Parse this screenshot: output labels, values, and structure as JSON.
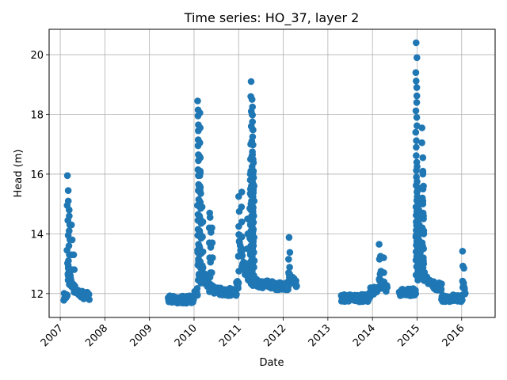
{
  "chart_data": {
    "type": "scatter",
    "title": "Time series: HO_37, layer 2",
    "xlabel": "Date",
    "ylabel": "Head (m)",
    "x_ticks": [
      "2007",
      "2008",
      "2009",
      "2010",
      "2011",
      "2012",
      "2013",
      "2014",
      "2015",
      "2016"
    ],
    "y_ticks": [
      12,
      14,
      16,
      18,
      20
    ],
    "xlim": [
      2006.75,
      2016.75
    ],
    "ylim": [
      11.2,
      20.85
    ],
    "grid": true,
    "legend": "none",
    "marker_color": "#1f77b4",
    "episodes": [
      {
        "start": 2007.08,
        "end": 2007.65,
        "base": 11.9,
        "peaks": [
          [
            2007.16,
            15.95
          ],
          [
            2007.18,
            15.1
          ],
          [
            2007.2,
            14.8
          ],
          [
            2007.25,
            14.3
          ],
          [
            2007.3,
            13.3
          ]
        ]
      },
      {
        "start": 2009.42,
        "end": 2009.99,
        "base": 11.8,
        "peaks": []
      },
      {
        "start": 2010.0,
        "end": 2010.95,
        "base": 12.05,
        "peaks": [
          [
            2010.08,
            18.45
          ],
          [
            2010.09,
            18.15
          ],
          [
            2010.13,
            18.05
          ],
          [
            2010.12,
            16.6
          ],
          [
            2010.13,
            15.95
          ],
          [
            2010.12,
            15.55
          ],
          [
            2010.15,
            15.35
          ],
          [
            2010.14,
            14.95
          ],
          [
            2010.18,
            14.9
          ],
          [
            2010.35,
            14.7
          ],
          [
            2010.36,
            14.55
          ],
          [
            2010.4,
            14.2
          ]
        ]
      },
      {
        "start": 2010.95,
        "end": 2011.75,
        "base": 12.3,
        "peaks": [
          [
            2011.0,
            15.25
          ],
          [
            2011.07,
            15.4
          ],
          [
            2011.28,
            19.1
          ],
          [
            2011.3,
            18.5
          ],
          [
            2011.31,
            18.25
          ],
          [
            2011.31,
            17.98
          ],
          [
            2011.27,
            17.0
          ],
          [
            2011.31,
            16.65
          ],
          [
            2011.33,
            16.38
          ],
          [
            2011.33,
            16.1
          ],
          [
            2011.26,
            15.8
          ],
          [
            2011.26,
            15.35
          ],
          [
            2011.3,
            15.0
          ],
          [
            2011.2,
            14.5
          ]
        ]
      },
      {
        "start": 2011.75,
        "end": 2012.3,
        "base": 12.25,
        "peaks": [
          [
            2012.13,
            13.88
          ],
          [
            2012.12,
            13.15
          ]
        ]
      },
      {
        "start": 2013.3,
        "end": 2013.95,
        "base": 11.85,
        "peaks": []
      },
      {
        "start": 2013.95,
        "end": 2014.33,
        "base": 12.1,
        "peaks": [
          [
            2014.15,
            13.65
          ],
          [
            2014.18,
            13.25
          ],
          [
            2014.25,
            13.2
          ]
        ]
      },
      {
        "start": 2014.6,
        "end": 2014.97,
        "base": 12.05,
        "peaks": []
      },
      {
        "start": 2014.98,
        "end": 2015.55,
        "base": 12.2,
        "peaks": [
          [
            2014.98,
            20.4
          ],
          [
            2014.98,
            19.12
          ],
          [
            2015.11,
            17.55
          ],
          [
            2015.13,
            16.1
          ],
          [
            2015.13,
            16.0
          ],
          [
            2015.0,
            16.25
          ],
          [
            2015.01,
            15.45
          ],
          [
            2015.12,
            15.2
          ],
          [
            2015.0,
            15.1
          ],
          [
            2015.04,
            14.8
          ],
          [
            2015.02,
            14.5
          ]
        ]
      },
      {
        "start": 2015.55,
        "end": 2016.08,
        "base": 11.85,
        "peaks": [
          [
            2016.02,
            13.42
          ],
          [
            2016.05,
            12.85
          ]
        ]
      }
    ]
  }
}
